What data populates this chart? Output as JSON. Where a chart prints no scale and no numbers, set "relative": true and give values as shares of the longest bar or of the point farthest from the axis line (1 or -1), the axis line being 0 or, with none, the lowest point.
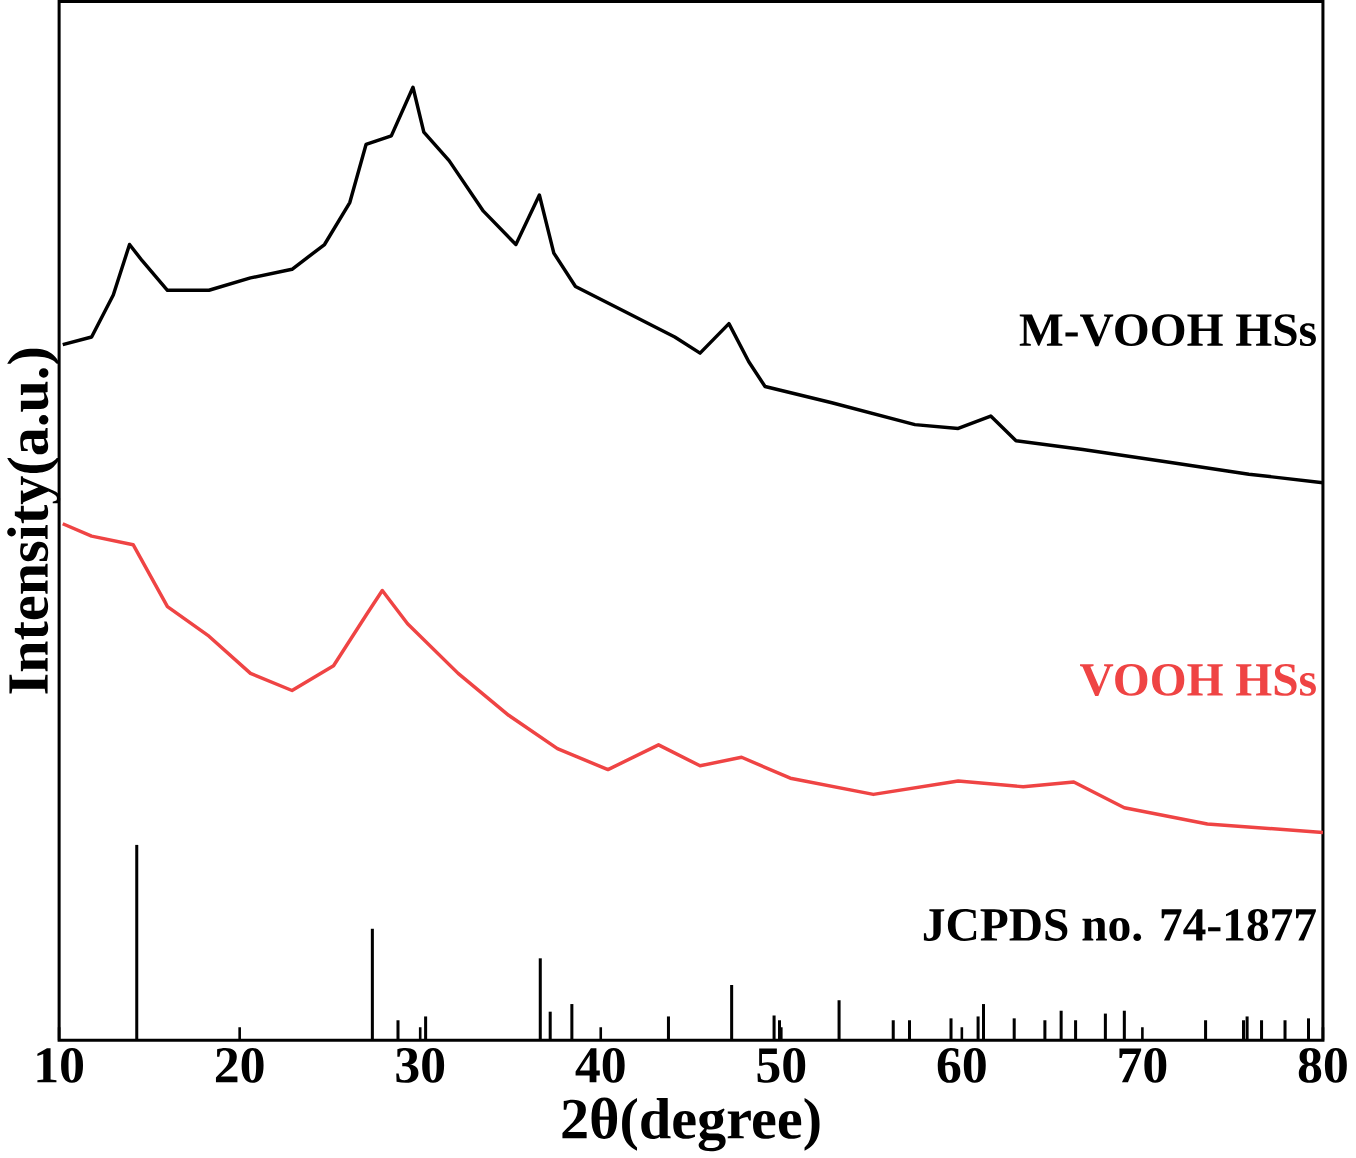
{
  "chart_data": {
    "type": "line",
    "xlabel": "2θ(degree)",
    "ylabel": "Intensity(a.u.)",
    "relative": true,
    "xlim": [
      10,
      80
    ],
    "xticks": [
      10,
      20,
      30,
      40,
      50,
      60,
      70,
      80
    ],
    "grid": false,
    "series": [
      {
        "name": "M-VOOH HSs",
        "color": "#000000",
        "x": [
          10.2,
          11.8,
          13.0,
          13.9,
          14.6,
          16.0,
          18.3,
          20.6,
          22.9,
          24.7,
          26.1,
          27.0,
          28.4,
          29.6,
          30.2,
          31.6,
          33.5,
          35.3,
          36.6,
          37.4,
          38.6,
          41.3,
          44.1,
          45.5,
          47.1,
          48.2,
          49.1,
          52.8,
          57.4,
          59.8,
          61.6,
          63.0,
          66.7,
          71.3,
          75.9,
          80.0
        ],
        "values": [
          0.73,
          0.738,
          0.782,
          0.835,
          0.818,
          0.787,
          0.787,
          0.8,
          0.809,
          0.835,
          0.879,
          0.94,
          0.949,
          1.0,
          0.953,
          0.923,
          0.87,
          0.835,
          0.887,
          0.826,
          0.791,
          0.765,
          0.738,
          0.721,
          0.752,
          0.712,
          0.686,
          0.669,
          0.646,
          0.642,
          0.655,
          0.629,
          0.62,
          0.607,
          0.594,
          0.585
        ]
      },
      {
        "name": "VOOH HSs",
        "color": "#ef4444",
        "x": [
          10.2,
          11.8,
          14.1,
          16.0,
          18.3,
          20.6,
          22.9,
          25.2,
          27.0,
          27.9,
          29.3,
          32.1,
          34.9,
          37.6,
          40.4,
          43.2,
          45.5,
          47.8,
          50.5,
          55.1,
          59.8,
          63.4,
          66.2,
          69.0,
          73.6,
          80.0
        ],
        "values": [
          0.542,
          0.529,
          0.52,
          0.455,
          0.424,
          0.385,
          0.367,
          0.393,
          0.446,
          0.472,
          0.437,
          0.385,
          0.341,
          0.306,
          0.284,
          0.31,
          0.288,
          0.297,
          0.275,
          0.258,
          0.272,
          0.266,
          0.271,
          0.244,
          0.227,
          0.218
        ]
      },
      {
        "name": "JCPDS no. 74-1877",
        "type": "bar",
        "color": "#000000",
        "x": [
          14.3,
          27.35,
          28.77,
          30.3,
          36.65,
          37.2,
          38.4,
          43.75,
          47.25,
          49.6,
          49.9,
          53.2,
          56.2,
          57.1,
          59.4,
          60.9,
          61.2,
          62.9,
          64.6,
          65.5,
          66.3,
          67.95,
          69.0,
          73.5,
          75.6,
          75.8,
          76.6,
          77.9,
          79.2
        ],
        "values": [
          0.205,
          0.117,
          0.021,
          0.025,
          0.086,
          0.03,
          0.038,
          0.025,
          0.058,
          0.026,
          0.021,
          0.042,
          0.021,
          0.021,
          0.023,
          0.025,
          0.038,
          0.023,
          0.021,
          0.031,
          0.021,
          0.028,
          0.031,
          0.021,
          0.021,
          0.025,
          0.021,
          0.021,
          0.023
        ]
      }
    ]
  }
}
